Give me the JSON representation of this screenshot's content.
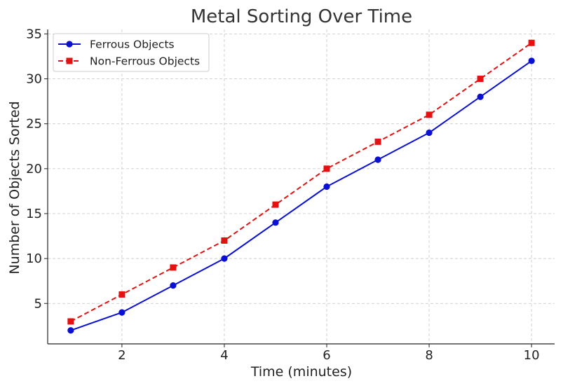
{
  "chart_data": {
    "type": "line",
    "title": "Metal Sorting Over Time",
    "xlabel": "Time (minutes)",
    "ylabel": "Number of Objects Sorted",
    "x": [
      1,
      2,
      3,
      4,
      5,
      6,
      7,
      8,
      9,
      10
    ],
    "xlim": [
      0.55,
      10.45
    ],
    "ylim": [
      0.5,
      35.5
    ],
    "xticks": [
      2,
      4,
      6,
      8,
      10
    ],
    "yticks": [
      5,
      10,
      15,
      20,
      25,
      30,
      35
    ],
    "grid": true,
    "legend_position": "top-left",
    "series": [
      {
        "name": "Ferrous Objects",
        "values": [
          2,
          4,
          7,
          10,
          14,
          18,
          21,
          24,
          28,
          32
        ],
        "color": "#0a0fd6",
        "marker": "circle",
        "line_style": "solid"
      },
      {
        "name": "Non-Ferrous Objects",
        "values": [
          3,
          6,
          9,
          12,
          16,
          20,
          23,
          26,
          30,
          34
        ],
        "color": "#e61010",
        "marker": "square",
        "line_style": "dashed"
      }
    ]
  }
}
